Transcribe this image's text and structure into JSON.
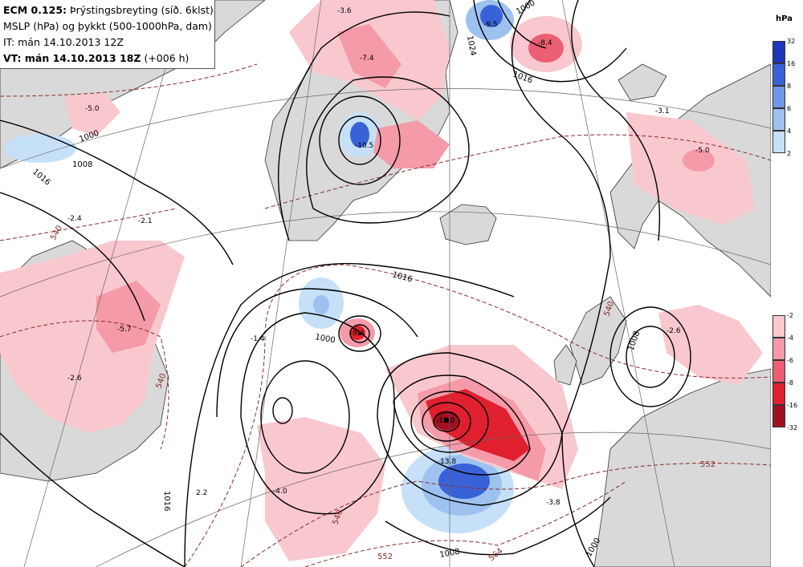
{
  "header": {
    "model": "ECM 0.125:",
    "title": "Þrýstingsbreyting (síð. 6klst)",
    "line2": "MSLP (hPa) og þykkt (500-1000hPa, dam)",
    "line3": "IT: mán 14.10.2013 12Z",
    "vt_label": "VT: mán 14.10.2013 18Z",
    "vt_offset": "(+006 h)"
  },
  "legend": {
    "unit": "hPa",
    "rise_ticks": [
      "32",
      "16",
      "8",
      "6",
      "4",
      "2"
    ],
    "fall_ticks": [
      "-2",
      "-4",
      "-6",
      "-8",
      "-16",
      "-32"
    ],
    "rise_colors": [
      "#1e36b8",
      "#3a62d8",
      "#6e98e6",
      "#9ec2f0",
      "#c6e0f8"
    ],
    "fall_colors": [
      "#f9c8cf",
      "#f49aa8",
      "#ec5f72",
      "#e0202e",
      "#a01020"
    ]
  },
  "map": {
    "isobar_labels": [
      "1000",
      "1008",
      "1016",
      "1016",
      "1000",
      "1016",
      "1008",
      "1016",
      "1024",
      "1000",
      "1008",
      "1000"
    ],
    "thickness_labels": [
      "540",
      "540",
      "540",
      "552",
      "552",
      "564",
      "540"
    ],
    "tendency_values": [
      "-5.0",
      "-3.6",
      "-7.4",
      "-9.5",
      "-8.4",
      "-10.5",
      "-2.4",
      "-2.1",
      "-5.7",
      "-2.6",
      "-1.4",
      "-9.4",
      "-3.1",
      "-5.0",
      "-2.6",
      "-18.0",
      "13.8",
      "-4.0",
      "2.2",
      "-3.8"
    ]
  }
}
